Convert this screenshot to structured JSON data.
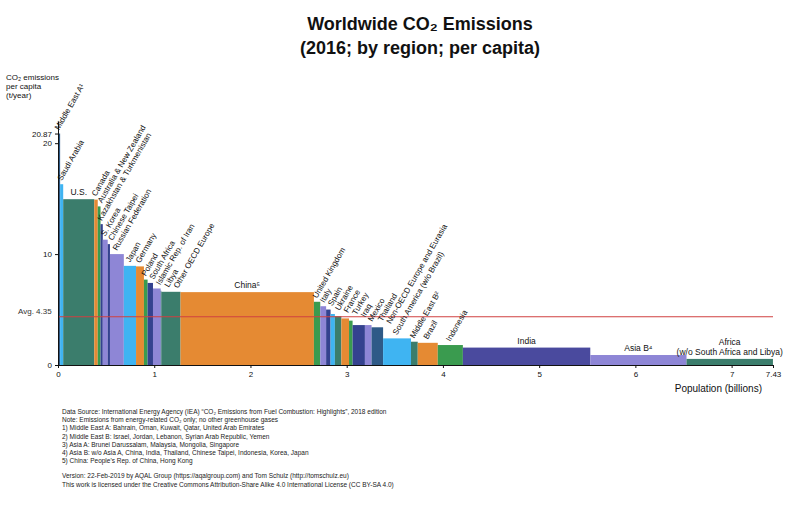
{
  "chart_data": {
    "type": "variable_width_bar",
    "title": "Worldwide CO₂ Emissions",
    "subtitle": "(2016; by region; per capita)",
    "y_label": [
      "CO₂ emissions",
      "per capita",
      "(t/year)"
    ],
    "x_label": "Population (billions)",
    "categories": [
      "Middle East A¹",
      "Saudi Arabia",
      "U.S.",
      "Canada",
      "Australia & New Zealand",
      "Kazakhstan & Turkmenistan",
      "S. Korea",
      "Chinese Taipei",
      "Russian Federation",
      "Japan",
      "Germany",
      "Poland",
      "South Africa",
      "Islamic Rep. of Iran",
      "Libya",
      "Other OECD Europe",
      "China⁵",
      "United Kingdom",
      "Italy",
      "Spain",
      "Ukraine",
      "France",
      "Turkey",
      "Iraq",
      "Mexico",
      "Thailand",
      "Non-OECD Europe and Eurasia",
      "South America (w/o Brazil)",
      "Middle East B²",
      "Brazil",
      "Indonesia",
      "India",
      "Asia B⁴",
      "Africa (w/o South Africa and Libya)"
    ],
    "values": [
      20.87,
      16.3,
      14.95,
      14.91,
      14.3,
      12.7,
      11.3,
      10.9,
      10.0,
      8.94,
      8.89,
      7.7,
      7.4,
      6.9,
      6.7,
      6.6,
      6.57,
      5.7,
      5.3,
      5.0,
      4.6,
      4.4,
      4.2,
      4.0,
      3.6,
      3.6,
      3.4,
      2.4,
      2.1,
      2.0,
      1.8,
      1.57,
      0.9,
      0.55
    ],
    "populations": [
      0.022,
      0.032,
      0.323,
      0.036,
      0.029,
      0.0235,
      0.051,
      0.0235,
      0.144,
      0.127,
      0.082,
      0.038,
      0.056,
      0.08,
      0.0063,
      0.2,
      1.386,
      0.066,
      0.061,
      0.046,
      0.045,
      0.067,
      0.08,
      0.037,
      0.128,
      0.069,
      0.12,
      0.29,
      0.07,
      0.208,
      0.261,
      1.324,
      1.0,
      0.898
    ],
    "colors": [
      "#2e5a87",
      "#3fb4f2",
      "#3b7d6c",
      "#e58a33",
      "#3a9b4f",
      "#34428f",
      "#8e86d6",
      "#34428f",
      "#8e86d6",
      "#3fb4f2",
      "#e58a33",
      "#3a9b4f",
      "#34428f",
      "#8e86d6",
      "#2e5a87",
      "#3b7d6c",
      "#e58a33",
      "#3a9b4f",
      "#8e86d6",
      "#34428f",
      "#3fb4f2",
      "#3b7d6c",
      "#e58a33",
      "#3a9b4f",
      "#34428f",
      "#8e86d6",
      "#2e5a87",
      "#3fb4f2",
      "#3b7d6c",
      "#e58a33",
      "#3a9b4f",
      "#4a4a9e",
      "#8e86d6",
      "#3b7d6c"
    ],
    "xlim": [
      0,
      7.43
    ],
    "xticks": [
      0,
      1,
      2,
      3,
      4,
      5,
      6,
      7,
      7.43
    ],
    "ylim": [
      0,
      22
    ],
    "yticks": [
      0,
      10,
      20,
      20.87
    ],
    "grid": false,
    "average": {
      "value": 4.35,
      "label": "Avg. 4.35"
    },
    "notes": [
      "Data Source: International Energy Agency (IEA) “CO₂ Emissions from Fuel Combustion: Highlights”, 2018 edition",
      "Note: Emissions from energy-related CO₂ only; no other greenhouse gases",
      "1) Middle East A: Bahrain, Oman, Kuwait, Qatar, United Arab Emirates",
      "2) Middle East B: Israel, Jordan, Lebanon, Syrian Arab Republic, Yemen",
      "3) Asia A: Brunei Darussalam, Malaysia, Mongolia, Singapore",
      "4) Asia B: w/o Asia A, China, India, Thailand, Chinese Taipei, Indonesia, Korea, Japan",
      "5) China: People's Rep. of China, Hong Kong"
    ],
    "credits": [
      "Version: 22-Feb-2019 by AQAL Group (https://aqalgroup.com) and Tom Schulz (http://tomschulz.eu)",
      "This work is licensed under the Creative Commons Attribution-Share Alike 4.0 International License (CC BY-SA 4.0)"
    ]
  }
}
